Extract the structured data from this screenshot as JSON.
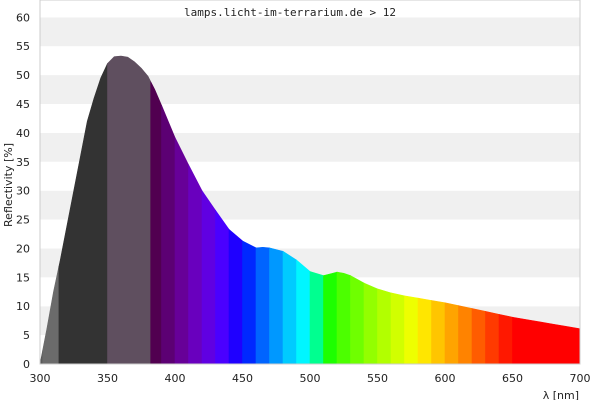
{
  "chart_data": {
    "type": "area",
    "title": "lamps.licht-im-terrarium.de > 12",
    "xlabel": "λ [nm]",
    "ylabel": "Reflectivity [%]",
    "xlim": [
      300,
      700
    ],
    "ylim": [
      0,
      63
    ],
    "xticks": [
      300,
      350,
      400,
      450,
      500,
      550,
      600,
      650,
      700
    ],
    "yticks": [
      0,
      5,
      10,
      15,
      20,
      25,
      30,
      35,
      40,
      45,
      50,
      55,
      60
    ],
    "grid": "horizontal alternating bands",
    "series": [
      {
        "x": [
          300,
          305,
          310,
          315,
          320,
          325,
          330,
          335,
          340,
          345,
          350,
          355,
          360,
          365,
          370,
          375,
          380,
          385,
          390,
          395,
          400,
          410,
          420,
          430,
          440,
          450,
          460,
          465,
          470,
          480,
          490,
          500,
          510,
          515,
          520,
          525,
          530,
          540,
          550,
          560,
          570,
          580,
          590,
          600,
          610,
          620,
          630,
          640,
          650,
          660,
          670,
          680,
          690,
          700
        ],
        "values": [
          0,
          6,
          12.5,
          18,
          24,
          30,
          36,
          42,
          46,
          49.5,
          52,
          53.2,
          53.3,
          53.1,
          52.3,
          51.2,
          49.8,
          47.5,
          44.8,
          42,
          39.2,
          34.5,
          30,
          26.6,
          23.3,
          21.3,
          20.1,
          20.2,
          20.1,
          19.5,
          18,
          16,
          15.3,
          15.6,
          15.9,
          15.7,
          15.3,
          14,
          13,
          12.3,
          11.8,
          11.4,
          11,
          10.6,
          10.1,
          9.6,
          9.1,
          8.6,
          8.1,
          7.7,
          7.3,
          6.9,
          6.5,
          6.1
        ]
      }
    ],
    "color_bands": [
      {
        "x0": 300,
        "x1": 302,
        "color": "#5a5a5a"
      },
      {
        "x0": 302,
        "x1": 314,
        "color": "#6b6b6b"
      },
      {
        "x0": 314,
        "x1": 350,
        "color": "#333333"
      },
      {
        "x0": 350,
        "x1": 382,
        "color": "#5f4f5f"
      },
      {
        "x0": 382,
        "x1": 390,
        "color": "#510050"
      },
      {
        "x0": 390,
        "x1": 400,
        "color": "#5c0073"
      },
      {
        "x0": 400,
        "x1": 410,
        "color": "#670098"
      },
      {
        "x0": 410,
        "x1": 420,
        "color": "#6900be"
      },
      {
        "x0": 420,
        "x1": 430,
        "color": "#6000e2"
      },
      {
        "x0": 430,
        "x1": 440,
        "color": "#4a00ff"
      },
      {
        "x0": 440,
        "x1": 450,
        "color": "#1f00ff"
      },
      {
        "x0": 450,
        "x1": 460,
        "color": "#0028ff"
      },
      {
        "x0": 460,
        "x1": 470,
        "color": "#0064ff"
      },
      {
        "x0": 470,
        "x1": 480,
        "color": "#0098ff"
      },
      {
        "x0": 480,
        "x1": 490,
        "color": "#00cbff"
      },
      {
        "x0": 490,
        "x1": 500,
        "color": "#00f6ff"
      },
      {
        "x0": 500,
        "x1": 510,
        "color": "#00ff90"
      },
      {
        "x0": 510,
        "x1": 520,
        "color": "#1dff00"
      },
      {
        "x0": 520,
        "x1": 530,
        "color": "#4cff00"
      },
      {
        "x0": 530,
        "x1": 540,
        "color": "#6fff00"
      },
      {
        "x0": 540,
        "x1": 550,
        "color": "#93ff00"
      },
      {
        "x0": 550,
        "x1": 560,
        "color": "#b2ff00"
      },
      {
        "x0": 560,
        "x1": 570,
        "color": "#d1ff00"
      },
      {
        "x0": 570,
        "x1": 580,
        "color": "#eeff00"
      },
      {
        "x0": 580,
        "x1": 590,
        "color": "#ffe600"
      },
      {
        "x0": 590,
        "x1": 600,
        "color": "#ffc500"
      },
      {
        "x0": 600,
        "x1": 610,
        "color": "#ffa400"
      },
      {
        "x0": 610,
        "x1": 620,
        "color": "#ff8300"
      },
      {
        "x0": 620,
        "x1": 630,
        "color": "#ff5c00"
      },
      {
        "x0": 630,
        "x1": 640,
        "color": "#ff3a00"
      },
      {
        "x0": 640,
        "x1": 650,
        "color": "#ff1800"
      },
      {
        "x0": 650,
        "x1": 700,
        "color": "#ff0000"
      }
    ],
    "colors": {
      "band_light": "#f0f0f0",
      "band_white": "#ffffff",
      "frame": "#cccccc",
      "text": "#222222"
    }
  }
}
